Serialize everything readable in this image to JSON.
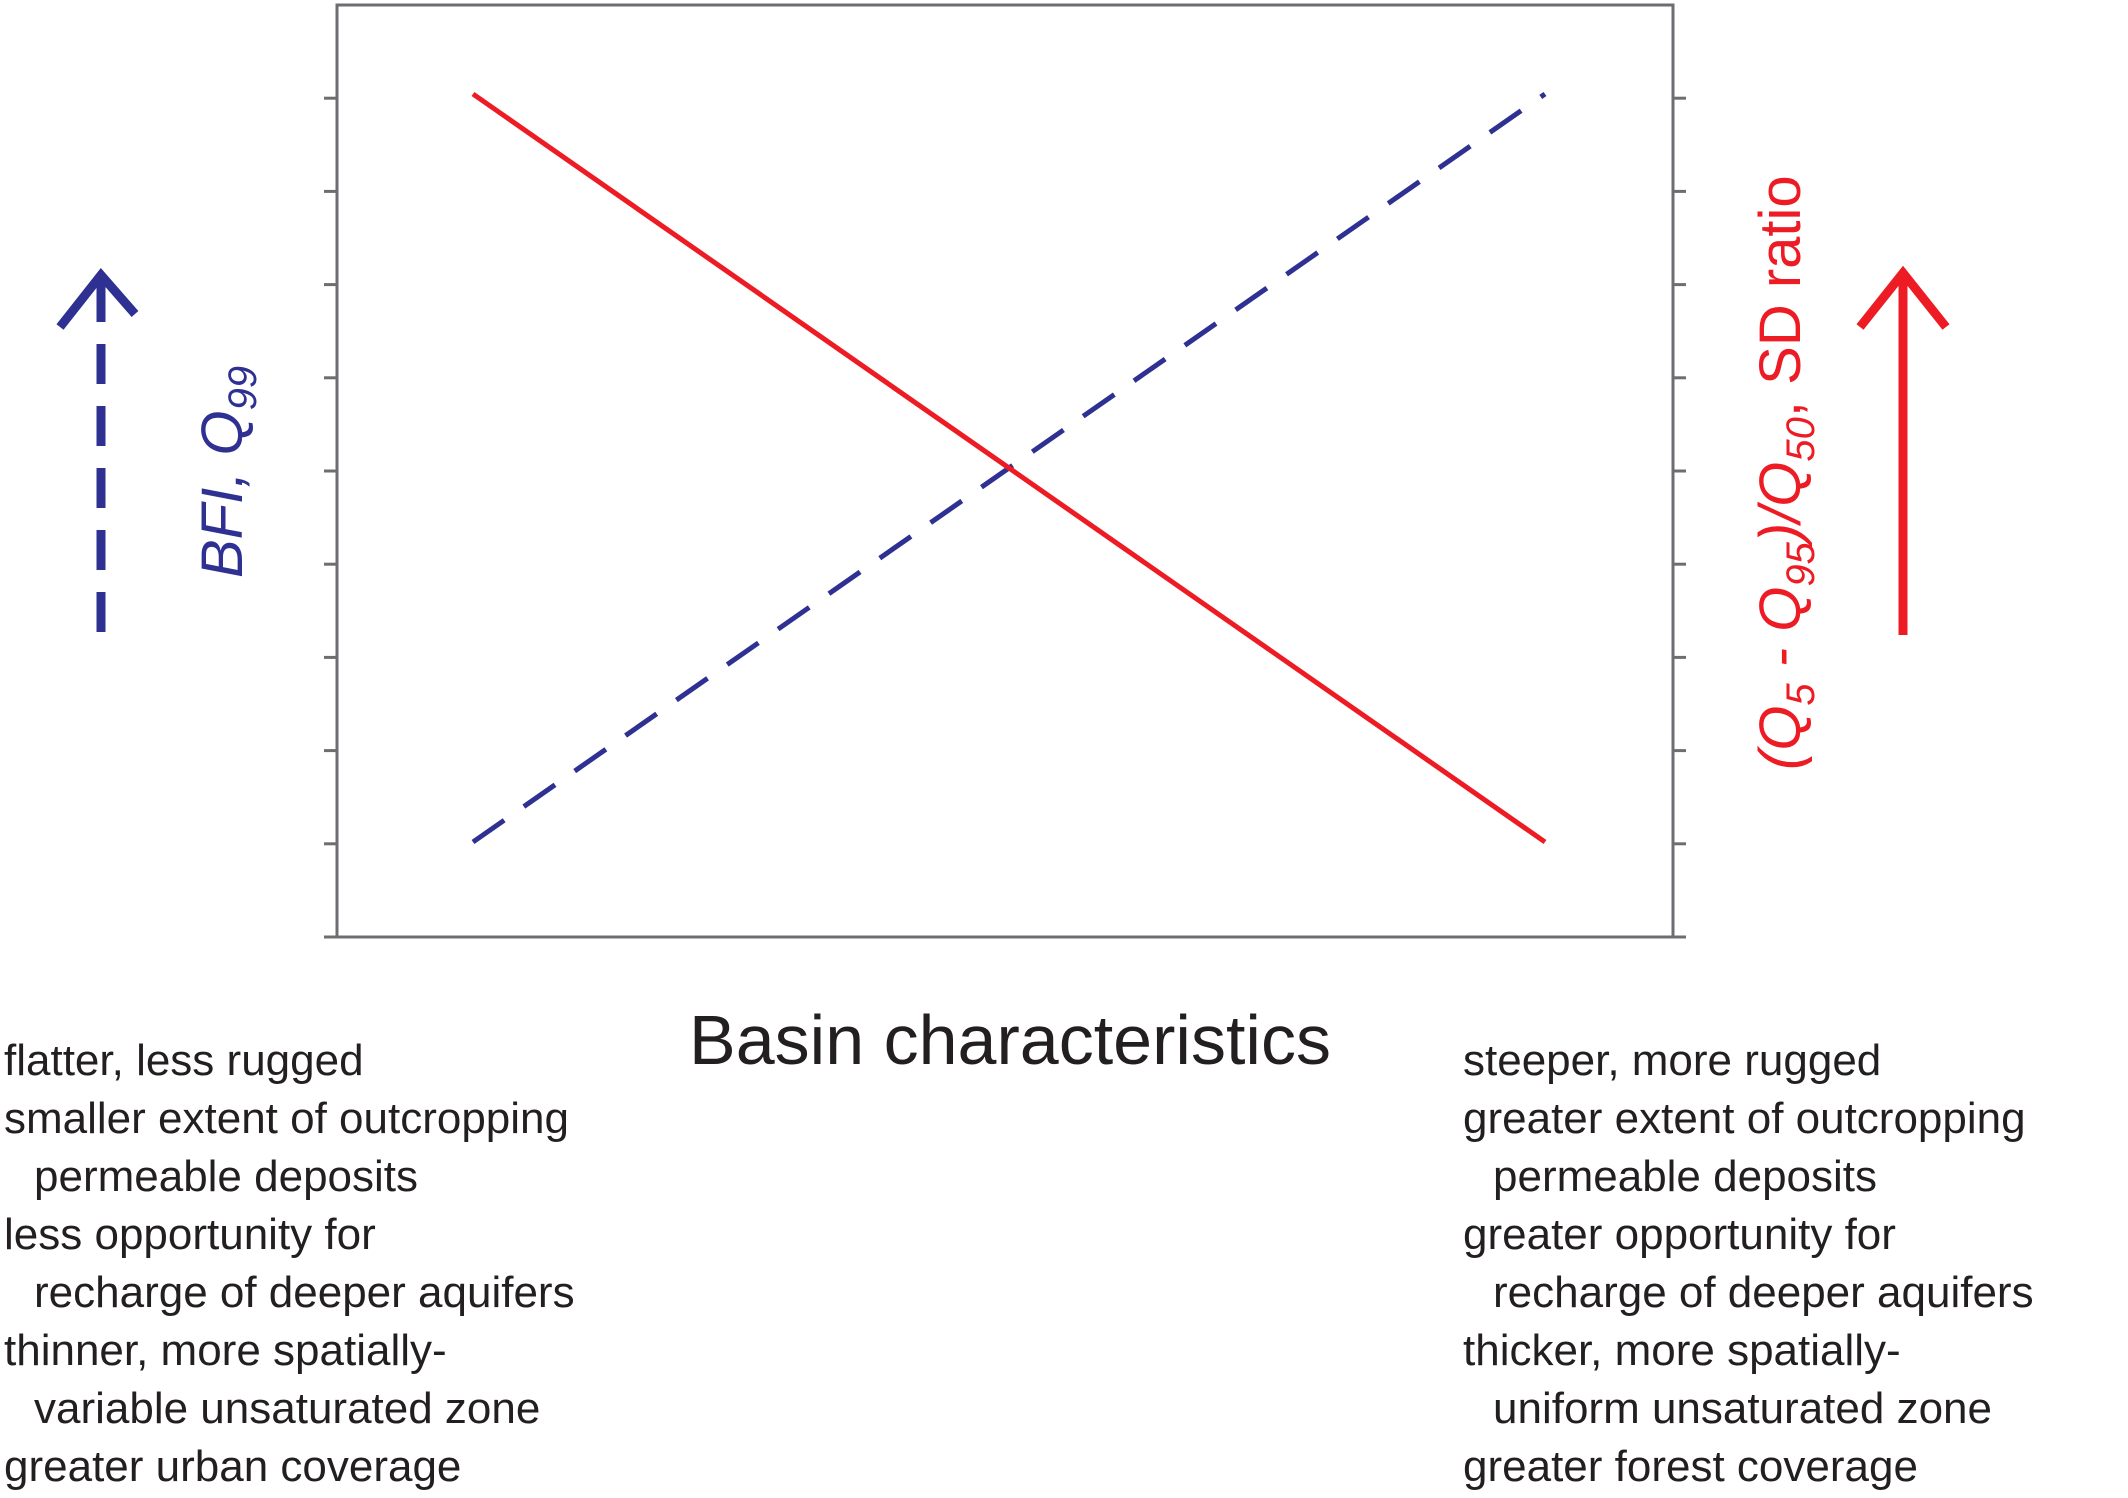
{
  "colors": {
    "frame": "#6d6e71",
    "blue": "#2e3192",
    "red": "#ed1c24",
    "text": "#231f20"
  },
  "left_axis": {
    "label_main": "BFI, Q",
    "label_sub": "99",
    "arrow_style": "dashed",
    "direction": "up"
  },
  "right_axis": {
    "label_parts": [
      "(Q",
      "5",
      " - Q",
      "95",
      ")/Q",
      "50",
      ", SD ratio"
    ],
    "arrow_style": "solid",
    "direction": "up"
  },
  "x_axis": {
    "title": "Basin characteristics"
  },
  "chart_data": {
    "type": "line",
    "xlim": [
      0,
      1
    ],
    "ylim": [
      0,
      1
    ],
    "series": [
      {
        "style": "dashed",
        "color": "#2e3192",
        "axis": "left",
        "x": [
          0,
          1
        ],
        "y": [
          0,
          1
        ]
      },
      {
        "style": "solid",
        "color": "#ed1c24",
        "axis": "right",
        "x": [
          0,
          1
        ],
        "y": [
          1,
          0
        ]
      }
    ]
  },
  "left_characteristics": [
    {
      "text": "flatter, less rugged",
      "indent": false
    },
    {
      "text": "smaller extent of outcropping",
      "indent": false
    },
    {
      "text": "permeable deposits",
      "indent": true
    },
    {
      "text": "less opportunity for",
      "indent": false
    },
    {
      "text": "recharge of deeper aquifers",
      "indent": true
    },
    {
      "text": "thinner, more spatially-",
      "indent": false
    },
    {
      "text": "variable unsaturated zone",
      "indent": true
    },
    {
      "text": "greater urban coverage",
      "indent": false
    }
  ],
  "right_characteristics": [
    {
      "text": "steeper, more rugged",
      "indent": false
    },
    {
      "text": "greater extent of outcropping",
      "indent": false
    },
    {
      "text": "permeable deposits",
      "indent": true
    },
    {
      "text": "greater opportunity for",
      "indent": false
    },
    {
      "text": "recharge of deeper aquifers",
      "indent": true
    },
    {
      "text": "thicker, more spatially-",
      "indent": false
    },
    {
      "text": "uniform unsaturated zone",
      "indent": true
    },
    {
      "text": "greater forest coverage",
      "indent": false
    }
  ]
}
